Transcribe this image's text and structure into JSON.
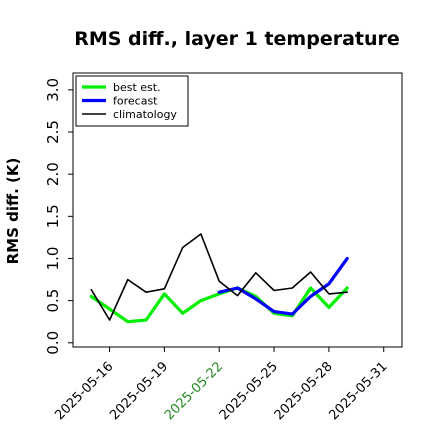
{
  "chart_data": {
    "type": "line",
    "title": "RMS diff., layer 1 temperature",
    "xlabel": "",
    "ylabel": "RMS diff. (K)",
    "ylim": [
      -0.05,
      3.2
    ],
    "xlim": [
      "2025-05-14",
      "2025-06-01"
    ],
    "yticks": [
      0.0,
      0.5,
      1.0,
      1.5,
      2.0,
      2.5,
      3.0
    ],
    "ytick_labels": [
      "0.0",
      "0.5",
      "1.0",
      "1.5",
      "2.0",
      "2.5",
      "3.0"
    ],
    "xticks": [
      "2025-05-16",
      "2025-05-19",
      "2025-05-22",
      "2025-05-25",
      "2025-05-28",
      "2025-05-31"
    ],
    "xtick_labels": [
      "2025-05-16",
      "2025-05-19",
      "2025-05-22",
      "2025-05-25",
      "2025-05-28",
      "2025-05-31"
    ],
    "highlight_tick": "2025-05-22",
    "highlight_color": "#228B22",
    "grid": false,
    "legend": "top-left",
    "series": [
      {
        "name": "best est.",
        "color": "#00ee00",
        "x": [
          "2025-05-15",
          "2025-05-16",
          "2025-05-17",
          "2025-05-18",
          "2025-05-19",
          "2025-05-20",
          "2025-05-21",
          "2025-05-22",
          "2025-05-23",
          "2025-05-24",
          "2025-05-25",
          "2025-05-26",
          "2025-05-27",
          "2025-05-28",
          "2025-05-29"
        ],
        "values": [
          0.55,
          0.4,
          0.25,
          0.27,
          0.58,
          0.35,
          0.5,
          0.58,
          0.65,
          0.55,
          0.35,
          0.32,
          0.65,
          0.42,
          0.65
        ]
      },
      {
        "name": "forecast",
        "color": "#0000ff",
        "x": [
          "2025-05-22",
          "2025-05-23",
          "2025-05-24",
          "2025-05-25",
          "2025-05-26",
          "2025-05-27",
          "2025-05-28",
          "2025-05-29"
        ],
        "values": [
          0.6,
          0.65,
          0.52,
          0.37,
          0.34,
          0.55,
          0.7,
          1.0
        ]
      },
      {
        "name": "climatology",
        "color": "#000000",
        "x": [
          "2025-05-15",
          "2025-05-16",
          "2025-05-17",
          "2025-05-18",
          "2025-05-19",
          "2025-05-20",
          "2025-05-21",
          "2025-05-22",
          "2025-05-23",
          "2025-05-24",
          "2025-05-25",
          "2025-05-26",
          "2025-05-27",
          "2025-05-28",
          "2025-05-29"
        ],
        "values": [
          0.63,
          0.27,
          0.75,
          0.6,
          0.64,
          1.13,
          1.29,
          0.73,
          0.56,
          0.83,
          0.62,
          0.65,
          0.84,
          0.58,
          0.6
        ]
      }
    ]
  }
}
